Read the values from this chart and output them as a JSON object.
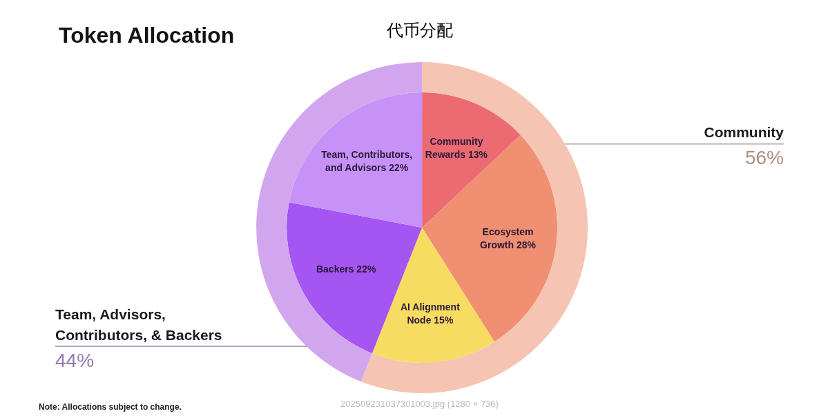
{
  "chart_data": [
    {
      "type": "pie",
      "title": "Token Allocation",
      "subtitle": "代币分配",
      "categories": [
        "Community Rewards",
        "Ecosystem Growth",
        "AI Alignment Node",
        "Backers",
        "Team, Contributors, and Advisors"
      ],
      "values": [
        13,
        28,
        15,
        22,
        22
      ],
      "value_labels": [
        "13%",
        "28%",
        "15%",
        "22%",
        "22%"
      ],
      "colors": [
        "#ec6a72",
        "#f08f72",
        "#f7dc62",
        "#a555f2",
        "#c692f7"
      ],
      "annotations": [
        "Note: Allocations subject to change.",
        "202509231037301003.jpg (1280 × 736)"
      ]
    },
    {
      "type": "donut",
      "categories": [
        "Community",
        "Team, Advisors, Contributors, & Backers"
      ],
      "values": [
        56,
        44
      ],
      "value_labels": [
        "56%",
        "44%"
      ],
      "colors": [
        "#f5c4b2",
        "#d2a6ee"
      ]
    }
  ]
}
